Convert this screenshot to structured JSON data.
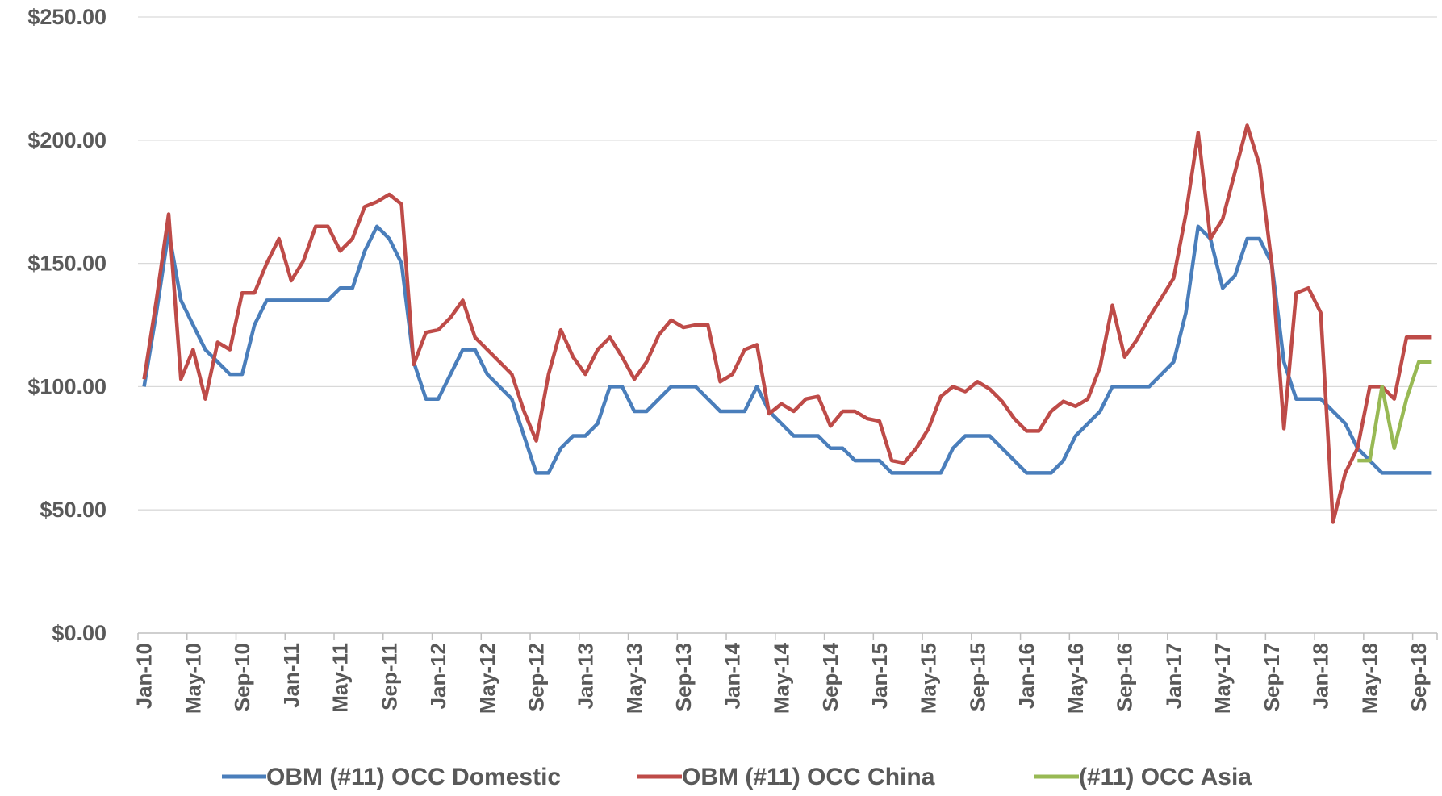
{
  "chart_data": {
    "type": "line",
    "categories": [
      "Jan-10",
      null,
      null,
      null,
      "May-10",
      null,
      null,
      null,
      "Sep-10",
      null,
      null,
      null,
      "Jan-11",
      null,
      null,
      null,
      "May-11",
      null,
      null,
      null,
      "Sep-11",
      null,
      null,
      null,
      "Jan-12",
      null,
      null,
      null,
      "May-12",
      null,
      null,
      null,
      "Sep-12",
      null,
      null,
      null,
      "Jan-13",
      null,
      null,
      null,
      "May-13",
      null,
      null,
      null,
      "Sep-13",
      null,
      null,
      null,
      "Jan-14",
      null,
      null,
      null,
      "May-14",
      null,
      null,
      null,
      "Sep-14",
      null,
      null,
      null,
      "Jan-15",
      null,
      null,
      null,
      "May-15",
      null,
      null,
      null,
      "Sep-15",
      null,
      null,
      null,
      "Jan-16",
      null,
      null,
      null,
      "May-16",
      null,
      null,
      null,
      "Sep-16",
      null,
      null,
      null,
      "Jan-17",
      null,
      null,
      null,
      "May-17",
      null,
      null,
      null,
      "Sep-17",
      null,
      null,
      null,
      "Jan-18",
      null,
      null,
      null,
      "May-18",
      null,
      null,
      null,
      "Sep-18",
      null
    ],
    "series": [
      {
        "name": "OBM (#11) OCC Domestic",
        "color": "#4a7ebb",
        "values": [
          100,
          130,
          163,
          135,
          125,
          115,
          110,
          105,
          105,
          125,
          135,
          135,
          135,
          135,
          135,
          135,
          140,
          140,
          155,
          165,
          160,
          150,
          110,
          95,
          95,
          105,
          115,
          115,
          105,
          100,
          95,
          80,
          65,
          65,
          75,
          80,
          80,
          85,
          100,
          100,
          90,
          90,
          95,
          100,
          100,
          100,
          95,
          90,
          90,
          90,
          100,
          90,
          85,
          80,
          80,
          80,
          75,
          75,
          70,
          70,
          70,
          65,
          65,
          65,
          65,
          65,
          75,
          80,
          80,
          80,
          75,
          70,
          65,
          65,
          65,
          70,
          80,
          85,
          90,
          100,
          100,
          100,
          100,
          105,
          110,
          130,
          165,
          160,
          140,
          145,
          160,
          160,
          150,
          110,
          95,
          95,
          95,
          90,
          85,
          75,
          70,
          65,
          65,
          65,
          65,
          65
        ]
      },
      {
        "name": "OBM (#11) OCC China",
        "color": "#be4b48",
        "values": [
          103,
          135,
          170,
          103,
          115,
          95,
          118,
          115,
          138,
          138,
          150,
          160,
          143,
          151,
          165,
          165,
          155,
          160,
          173,
          175,
          178,
          174,
          109,
          122,
          123,
          128,
          135,
          120,
          115,
          110,
          105,
          90,
          78,
          105,
          123,
          112,
          105,
          115,
          120,
          112,
          103,
          110,
          121,
          127,
          124,
          125,
          125,
          102,
          105,
          115,
          117,
          89,
          93,
          90,
          95,
          96,
          84,
          90,
          90,
          87,
          86,
          70,
          69,
          75,
          83,
          96,
          100,
          98,
          102,
          99,
          94,
          87,
          82,
          82,
          90,
          94,
          92,
          95,
          108,
          133,
          112,
          119,
          128,
          136,
          144,
          170,
          203,
          160,
          168,
          187,
          206,
          190,
          150,
          83,
          138,
          140,
          130,
          45,
          65,
          75,
          100,
          100,
          95,
          120,
          120,
          120
        ]
      },
      {
        "name": "(#11) OCC Asia",
        "color": "#98b954",
        "values": [
          null,
          null,
          null,
          null,
          null,
          null,
          null,
          null,
          null,
          null,
          null,
          null,
          null,
          null,
          null,
          null,
          null,
          null,
          null,
          null,
          null,
          null,
          null,
          null,
          null,
          null,
          null,
          null,
          null,
          null,
          null,
          null,
          null,
          null,
          null,
          null,
          null,
          null,
          null,
          null,
          null,
          null,
          null,
          null,
          null,
          null,
          null,
          null,
          null,
          null,
          null,
          null,
          null,
          null,
          null,
          null,
          null,
          null,
          null,
          null,
          null,
          null,
          null,
          null,
          null,
          null,
          null,
          null,
          null,
          null,
          null,
          null,
          null,
          null,
          null,
          null,
          null,
          null,
          null,
          null,
          null,
          null,
          null,
          null,
          null,
          null,
          null,
          null,
          null,
          null,
          null,
          null,
          null,
          null,
          null,
          null,
          null,
          null,
          null,
          70,
          70,
          100,
          75,
          95,
          110,
          110
        ]
      }
    ],
    "ylim": [
      0,
      250
    ],
    "yticks": [
      {
        "value": 0,
        "label": "$0.00"
      },
      {
        "value": 50,
        "label": "$50.00"
      },
      {
        "value": 100,
        "label": "$100.00"
      },
      {
        "value": 150,
        "label": "$150.00"
      },
      {
        "value": 200,
        "label": "$200.00"
      },
      {
        "value": 250,
        "label": "$250.00"
      }
    ],
    "grid": true,
    "legend": "bottom"
  }
}
